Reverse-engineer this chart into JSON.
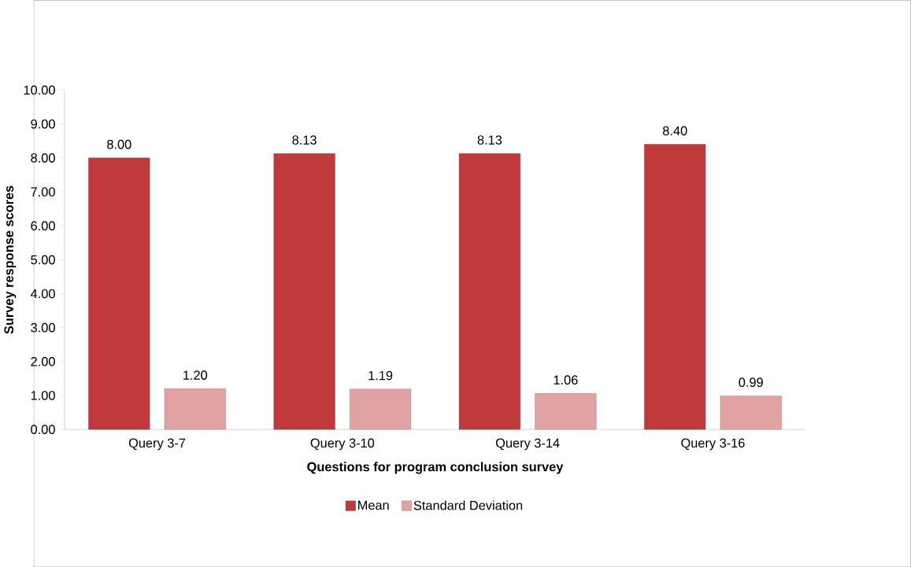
{
  "chart_data": {
    "type": "bar",
    "xlabel": "Questions for program conclusion survey",
    "ylabel": "Survey response scores",
    "categories": [
      "Query 3-7",
      "Query 3-10",
      "Query 3-14",
      "Query 3-16"
    ],
    "series": [
      {
        "name": "Mean",
        "color": "#c0393b",
        "values": [
          8.0,
          8.13,
          8.13,
          8.4
        ],
        "value_labels": [
          "8.00",
          "8.13",
          "8.13",
          "8.40"
        ]
      },
      {
        "name": "Standard Deviation",
        "color": "#e0a2a2",
        "values": [
          1.2,
          1.19,
          1.06,
          0.99
        ],
        "value_labels": [
          "1.20",
          "1.19",
          "1.06",
          "0.99"
        ]
      }
    ],
    "ylim": [
      0,
      10
    ],
    "yticks": [
      {
        "value": 0,
        "label": "0.00"
      },
      {
        "value": 1,
        "label": "1.00"
      },
      {
        "value": 2,
        "label": "2.00"
      },
      {
        "value": 3,
        "label": "3.00"
      },
      {
        "value": 4,
        "label": "4.00"
      },
      {
        "value": 5,
        "label": "5.00"
      },
      {
        "value": 6,
        "label": "6.00"
      },
      {
        "value": 7,
        "label": "7.00"
      },
      {
        "value": 8,
        "label": "8.00"
      },
      {
        "value": 9,
        "label": "9.00"
      },
      {
        "value": 10,
        "label": "10.00"
      }
    ],
    "grid": false,
    "legend": "bottom"
  }
}
